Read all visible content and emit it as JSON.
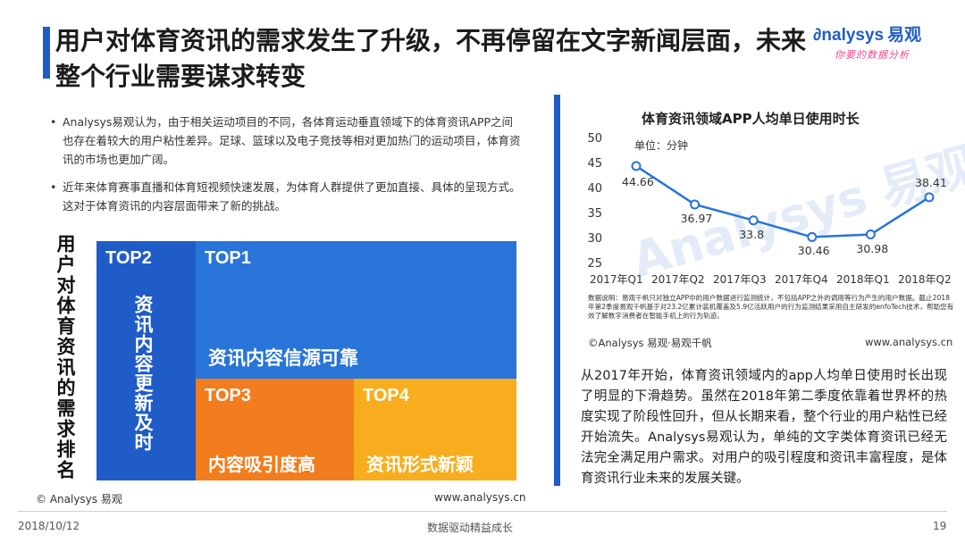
{
  "header": {
    "title": "用户对体育资讯的需求发生了升级，不再停留在文字新闻层面，未来整个行业需要谋求转变",
    "logo_main": "nalysys",
    "logo_cn": "易观",
    "logo_sub": "你要的数据分析"
  },
  "bullets": [
    "Analysys易观认为，由于相关运动项目的不同，各体育运动垂直领域下的体育资讯APP之间也存在着较大的用户粘性差异。足球、篮球以及电子竞技等相对更加热门的运动项目，体育资讯的市场也更加广阔。",
    "近年来体育赛事直播和体育短视频快速发展，为体育人群提供了更加直接、具体的呈现方式。这对于体育资讯的内容层面带来了新的挑战。"
  ],
  "ranking": {
    "label": "用户对体育资讯的需求排名",
    "items": [
      {
        "tag": "TOP1",
        "name": "资讯内容信源可靠",
        "color": "#2874d8"
      },
      {
        "tag": "TOP2",
        "name": "资讯内容更新及时",
        "color": "#1f5cc7"
      },
      {
        "tag": "TOP3",
        "name": "内容吸引度高",
        "color": "#f27d1e"
      },
      {
        "tag": "TOP4",
        "name": "资讯形式新颖",
        "color": "#f7ad1d"
      }
    ],
    "source": "© Analysys 易观",
    "url": "www.analysys.cn"
  },
  "chart_data": {
    "type": "line",
    "title": "体育资讯领域APP人均单日使用时长",
    "unit": "单位：分钟",
    "categories": [
      "2017年Q1",
      "2017年Q2",
      "2017年Q3",
      "2017年Q4",
      "2018年Q1",
      "2018年Q2"
    ],
    "values": [
      44.66,
      36.97,
      33.8,
      30.46,
      30.98,
      38.41
    ],
    "ylim": [
      25,
      50
    ],
    "yticks": [
      25,
      30,
      35,
      40,
      45,
      50
    ],
    "line_color": "#2874d8",
    "grid": false,
    "watermark": "Analysys 易观",
    "note": "数据说明：易观千帆只对独立APP中的用户数据进行监测统计，不包括APP之外的调用等行为产生的用户数据。截止2018年第2季度易观千帆基于对23.2亿累计装机覆盖及5.9亿活跃用户的行为监测结果采用自主研发的enfoTech技术，帮助您有效了解数字消费者在智能手机上的行为轨迹。",
    "source": "©Analysys 易观·易观千帆",
    "url": "www.analysys.cn"
  },
  "conclusion": "从2017年开始，体育资讯领域内的app人均单日使用时长出现了明显的下滑趋势。虽然在2018年第二季度依靠着世界杯的热度实现了阶段性回升，但从长期来看，整个行业的用户粘性已经开始流失。Analysys易观认为，单纯的文字类体育资讯已经无法完全满足用户需求。对用户的吸引程度和资讯丰富程度，是体育资讯行业未来的发展关键。",
  "footer": {
    "date": "2018/10/12",
    "slogan": "数据驱动精益成长",
    "page": "19"
  }
}
